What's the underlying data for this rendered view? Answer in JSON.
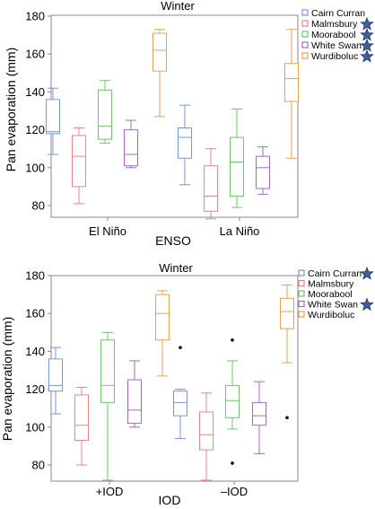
{
  "chart_data": [
    {
      "type": "box",
      "title": "Winter",
      "xlabel": "ENSO",
      "ylabel": "Pan evaporation (mm)",
      "ylim": [
        70,
        180
      ],
      "yticks": [
        80,
        100,
        120,
        140,
        160,
        180
      ],
      "categories": [
        "El Niño",
        "La Niño"
      ],
      "legend_position": "top-right outside",
      "series": [
        {
          "name": "Cairn Curran",
          "color": "#7a96d8",
          "significant": false,
          "boxes": [
            {
              "min": 107,
              "q1": 118,
              "median": 119,
              "q3": 136,
              "max": 142
            },
            {
              "min": 91,
              "q1": 105,
              "median": 116,
              "q3": 121,
              "max": 133
            }
          ]
        },
        {
          "name": "Malmsbury",
          "color": "#e98585",
          "significant": true,
          "boxes": [
            {
              "min": 81,
              "q1": 90,
              "median": 106,
              "q3": 117,
              "max": 121
            },
            {
              "min": 73,
              "q1": 77,
              "median": 85,
              "q3": 101,
              "max": 110
            }
          ]
        },
        {
          "name": "Moorabool",
          "color": "#6fc56a",
          "significant": true,
          "boxes": [
            {
              "min": 113,
              "q1": 115,
              "median": 122,
              "q3": 141,
              "max": 146
            },
            {
              "min": 79,
              "q1": 85,
              "median": 103,
              "q3": 116,
              "max": 131
            }
          ]
        },
        {
          "name": "White Swan",
          "color": "#a36bbd",
          "significant": true,
          "boxes": [
            {
              "min": 100,
              "q1": 101,
              "median": 107,
              "q3": 120,
              "max": 125
            },
            {
              "min": 86,
              "q1": 89,
              "median": 100,
              "q3": 106,
              "max": 111
            }
          ]
        },
        {
          "name": "Wurdiboluc",
          "color": "#e8a055",
          "significant": true,
          "boxes": [
            {
              "min": 127,
              "q1": 151,
              "median": 162,
              "q3": 171,
              "max": 173
            },
            {
              "min": 105,
              "q1": 135,
              "median": 147,
              "q3": 155,
              "max": 173
            }
          ]
        }
      ]
    },
    {
      "type": "box",
      "title": "Winter",
      "xlabel": "IOD",
      "ylabel": "Pan evaporation (mm)",
      "ylim": [
        70,
        180
      ],
      "yticks": [
        80,
        100,
        120,
        140,
        160,
        180
      ],
      "categories": [
        "+IOD",
        "–IOD"
      ],
      "legend_position": "top-right outside",
      "series": [
        {
          "name": "Cairn Curran",
          "color": "#7a96d8",
          "significant": true,
          "boxes": [
            {
              "min": 107,
              "q1": 119,
              "median": 122,
              "q3": 136,
              "max": 142,
              "outliers": []
            },
            {
              "min": 94,
              "q1": 106,
              "median": 113,
              "q3": 119,
              "max": 120,
              "outliers": [
                142
              ]
            }
          ]
        },
        {
          "name": "Malmsbury",
          "color": "#e98585",
          "significant": false,
          "boxes": [
            {
              "min": 80,
              "q1": 93,
              "median": 101,
              "q3": 117,
              "max": 121,
              "outliers": []
            },
            {
              "min": 72,
              "q1": 88,
              "median": 96,
              "q3": 108,
              "max": 118,
              "outliers": []
            }
          ]
        },
        {
          "name": "Moorabool",
          "color": "#6fc56a",
          "significant": false,
          "boxes": [
            {
              "min": 72,
              "q1": 113,
              "median": 122,
              "q3": 146,
              "max": 150,
              "outliers": []
            },
            {
              "min": 99,
              "q1": 105,
              "median": 114,
              "q3": 122,
              "max": 135,
              "outliers": [
                146,
                81
              ]
            }
          ]
        },
        {
          "name": "White Swan",
          "color": "#a36bbd",
          "significant": true,
          "boxes": [
            {
              "min": 100,
              "q1": 102,
              "median": 109,
              "q3": 125,
              "max": 135,
              "outliers": []
            },
            {
              "min": 86,
              "q1": 101,
              "median": 106,
              "q3": 113,
              "max": 124,
              "outliers": []
            }
          ]
        },
        {
          "name": "Wurdiboluc",
          "color": "#e8a055",
          "significant": false,
          "boxes": [
            {
              "min": 127,
              "q1": 146,
              "median": 160,
              "q3": 170,
              "max": 172,
              "outliers": []
            },
            {
              "min": 134,
              "q1": 152,
              "median": 161,
              "q3": 168,
              "max": 175,
              "outliers": [
                105
              ]
            }
          ]
        }
      ]
    }
  ]
}
